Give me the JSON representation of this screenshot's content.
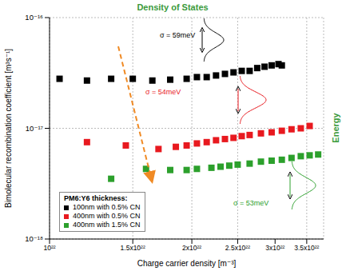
{
  "chart_data": {
    "type": "scatter",
    "title": "Density of States",
    "right_label": "Energy",
    "x_label": "Charge carrier density [m⁻³]",
    "y_label": "Bimolecular recombination coefficient [m³s⁻¹]",
    "log": true,
    "grid": true,
    "legend": "lower left",
    "legend_title": "PM6:Y6 thickness:",
    "xlim": [
      1e+22,
      3.8e+22
    ],
    "xticks": [
      {
        "value": 1e+22,
        "label": "10²²"
      },
      {
        "value": 1.5e+22,
        "label": "1.5x10²²"
      },
      {
        "value": 2e+22,
        "label": "2x10²²"
      },
      {
        "value": 2.5e+22,
        "label": "2.5x10²²"
      },
      {
        "value": 3e+22,
        "label": "3x10²²"
      },
      {
        "value": 3.5e+22,
        "label": "3.5x10²²"
      }
    ],
    "ylim": [
      1e-18,
      1e-16
    ],
    "yticks": [
      {
        "value": 1e-18,
        "label": "10⁻¹⁸"
      },
      {
        "value": 1e-17,
        "label": "10⁻¹⁷"
      },
      {
        "value": 1e-16,
        "label": "10⁻¹⁶"
      }
    ],
    "annotations": [
      "σ = 59meV",
      "σ = 54meV",
      "σ = 53meV"
    ],
    "series": [
      {
        "name": "100nm with 0.5% CN",
        "color": "#000000",
        "marker": "square",
        "x": [
          1.05e+22,
          1.2e+22,
          1.35e+22,
          1.5e+22,
          1.65e+22,
          1.8e+22,
          1.95e+22,
          2.05e+22,
          2.15e+22,
          2.25e+22,
          2.35e+22,
          2.45e+22,
          2.55e+22,
          2.65e+22,
          2.75e+22,
          2.85e+22,
          2.95e+22,
          3.05e+22,
          3.1e+22
        ],
        "values": [
          2.8e-17,
          2.7e-17,
          2.8e-17,
          2.8e-17,
          2.7e-17,
          2.75e-17,
          2.8e-17,
          2.9e-17,
          2.9e-17,
          3e-17,
          3.1e-17,
          3.2e-17,
          3.3e-17,
          3.3e-17,
          3.5e-17,
          3.6e-17,
          3.7e-17,
          3.8e-17,
          3.7e-17
        ]
      },
      {
        "name": "400nm with 0.5% CN",
        "color": "#e8191f",
        "marker": "square",
        "x": [
          1.2e+22,
          1.45e+22,
          1.7e+22,
          1.85e+22,
          1.95e+22,
          2.05e+22,
          2.15e+22,
          2.25e+22,
          2.35e+22,
          2.45e+22,
          2.55e+22,
          2.65e+22,
          2.8e+22,
          2.95e+22,
          3.1e+22,
          3.25e+22,
          3.4e+22,
          3.55e+22
        ],
        "values": [
          7.5e-18,
          7e-18,
          6.5e-18,
          6.8e-18,
          7e-18,
          7.3e-18,
          7.5e-18,
          7.8e-18,
          8e-18,
          8.2e-18,
          8.5e-18,
          8.7e-18,
          9e-18,
          9.2e-18,
          9.5e-18,
          9.8e-18,
          1e-17,
          1.05e-17
        ]
      },
      {
        "name": "400nm with 1.5% CN",
        "color": "#2ca02c",
        "marker": "square",
        "x": [
          1.35e+22,
          1.6e+22,
          1.8e+22,
          1.95e+22,
          2.05e+22,
          2.2e+22,
          2.3e+22,
          2.4e+22,
          2.5e+22,
          2.65e+22,
          2.8e+22,
          2.95e+22,
          3.1e+22,
          3.25e+22,
          3.4e+22,
          3.55e+22,
          3.7e+22
        ],
        "values": [
          3.5e-18,
          4.3e-18,
          4.2e-18,
          4.2e-18,
          4.3e-18,
          4.4e-18,
          4.5e-18,
          4.6e-18,
          4.7e-18,
          4.8e-18,
          5e-18,
          5.1e-18,
          5.2e-18,
          5.4e-18,
          5.6e-18,
          5.7e-18,
          5.8e-18
        ]
      }
    ]
  }
}
